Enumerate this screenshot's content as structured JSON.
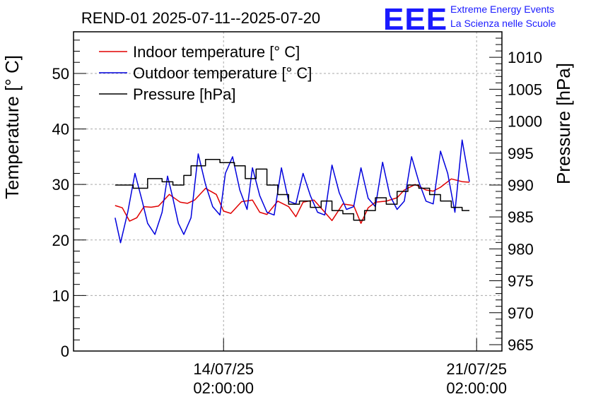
{
  "chart_data": {
    "type": "line",
    "title": "REND-01 2025-07-11--2025-07-20",
    "ylabel": "Temperature [° C]",
    "y2label": "Pressure [hPa]",
    "ylim": [
      0,
      57.5
    ],
    "y2lim": [
      964,
      1014
    ],
    "yticks": [
      0,
      10,
      20,
      30,
      40,
      50
    ],
    "y2ticks": [
      965,
      970,
      975,
      980,
      985,
      990,
      995,
      1000,
      1005,
      1010
    ],
    "xticks": [
      {
        "day": 3,
        "label1": "14/07/25",
        "label2": "02:00:00"
      },
      {
        "day": 10,
        "label1": "21/07/25",
        "label2": "02:00:00"
      }
    ],
    "xlim_days": [
      -1.15,
      10.7
    ],
    "grid": true,
    "legend_position": "top-left",
    "series": [
      {
        "name": "Indoor temperature [° C]",
        "color": "#e00000",
        "axis": "left",
        "x": [
          0.0,
          0.2,
          0.4,
          0.6,
          0.8,
          1.0,
          1.2,
          1.5,
          1.8,
          2.0,
          2.2,
          2.5,
          2.8,
          3.0,
          3.2,
          3.5,
          3.8,
          4.0,
          4.2,
          4.5,
          4.8,
          5.0,
          5.2,
          5.5,
          5.8,
          6.0,
          6.3,
          6.6,
          6.8,
          7.0,
          7.2,
          7.5,
          7.8,
          8.0,
          8.3,
          8.6,
          8.8,
          9.0,
          9.3,
          9.6,
          9.8
        ],
        "y": [
          26.2,
          25.8,
          23.4,
          24.0,
          26.0,
          25.9,
          26.1,
          28.2,
          26.8,
          26.6,
          27.2,
          29.3,
          28.2,
          25.2,
          24.8,
          26.9,
          27.2,
          25.0,
          24.6,
          27.0,
          26.0,
          24.2,
          26.8,
          27.2,
          25.0,
          23.5,
          26.5,
          26.2,
          23.0,
          25.8,
          26.8,
          27.0,
          27.6,
          29.0,
          30.0,
          29.0,
          28.8,
          29.5,
          31.0,
          30.5,
          30.4
        ]
      },
      {
        "name": "Outdoor temperature [° C]",
        "color": "#0000dd",
        "axis": "left",
        "x": [
          0.0,
          0.15,
          0.35,
          0.55,
          0.75,
          0.9,
          1.1,
          1.3,
          1.45,
          1.6,
          1.75,
          1.9,
          2.1,
          2.3,
          2.5,
          2.7,
          2.9,
          3.05,
          3.25,
          3.45,
          3.65,
          3.8,
          4.0,
          4.2,
          4.4,
          4.6,
          4.8,
          5.0,
          5.2,
          5.4,
          5.6,
          5.8,
          6.0,
          6.2,
          6.4,
          6.6,
          6.8,
          7.0,
          7.2,
          7.4,
          7.6,
          7.8,
          8.0,
          8.2,
          8.4,
          8.6,
          8.8,
          9.0,
          9.2,
          9.4,
          9.6,
          9.8
        ],
        "y": [
          24.0,
          19.5,
          25.0,
          32.0,
          27.0,
          23.0,
          21.0,
          25.0,
          31.5,
          27.5,
          23.0,
          21.0,
          24.0,
          35.5,
          30.0,
          26.0,
          24.5,
          32.0,
          35.0,
          29.0,
          25.5,
          33.0,
          28.0,
          25.0,
          24.5,
          33.0,
          27.0,
          26.5,
          32.0,
          28.0,
          25.0,
          24.5,
          33.5,
          28.5,
          25.5,
          26.0,
          33.0,
          27.5,
          26.0,
          34.0,
          28.0,
          25.5,
          27.0,
          35.0,
          30.5,
          27.0,
          26.5,
          36.0,
          32.0,
          25.0,
          38.0,
          30.5
        ]
      },
      {
        "name": "Pressure [hPa]",
        "color": "#000000",
        "axis": "right",
        "step": true,
        "x": [
          0.0,
          0.5,
          0.9,
          1.3,
          1.6,
          1.9,
          2.1,
          2.5,
          2.9,
          3.3,
          3.6,
          3.9,
          4.2,
          4.5,
          4.8,
          5.1,
          5.4,
          5.7,
          6.0,
          6.3,
          6.6,
          6.9,
          7.2,
          7.5,
          7.8,
          8.1,
          8.4,
          8.7,
          9.0,
          9.3,
          9.6,
          9.8
        ],
        "y": [
          990.0,
          989.5,
          991.0,
          990.5,
          990.0,
          991.5,
          993.0,
          994.0,
          993.5,
          993.0,
          991.0,
          992.5,
          990.0,
          988.5,
          987.0,
          987.5,
          986.5,
          987.5,
          986.0,
          985.5,
          984.5,
          986.0,
          988.0,
          987.0,
          989.0,
          990.0,
          989.5,
          988.5,
          987.5,
          986.5,
          986.0,
          986.0
        ]
      }
    ]
  },
  "logo": {
    "mark": "EEE",
    "line1": "Extreme Energy Events",
    "line2": "La Scienza nelle Scuole"
  }
}
